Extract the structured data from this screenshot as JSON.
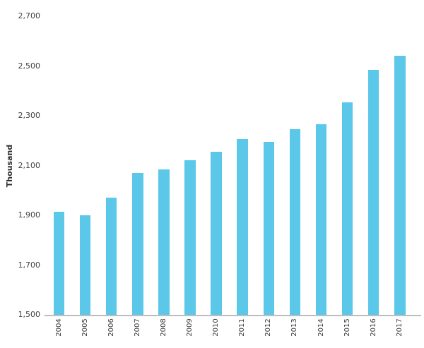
{
  "chart_data": {
    "type": "bar",
    "title": "",
    "xlabel": "",
    "ylabel": "Thousand",
    "categories": [
      "2004",
      "2005",
      "2006",
      "2007",
      "2008",
      "2009",
      "2010",
      "2011",
      "2012",
      "2013",
      "2014",
      "2015",
      "2016",
      "2017"
    ],
    "values": [
      1915,
      1900,
      1970,
      2070,
      2085,
      2120,
      2155,
      2205,
      2195,
      2245,
      2265,
      2355,
      2485,
      2540
    ],
    "ylim": [
      1500,
      2700
    ],
    "ytick_step": 200,
    "ytick_labels": [
      "1,500",
      "1,700",
      "1,900",
      "2,100",
      "2,300",
      "2,500",
      "2,700"
    ],
    "grid": false,
    "legend_position": "none",
    "bar_color": "#5bc8ea",
    "axis_line_color": "#bdbdbd",
    "text_color": "#404040"
  }
}
